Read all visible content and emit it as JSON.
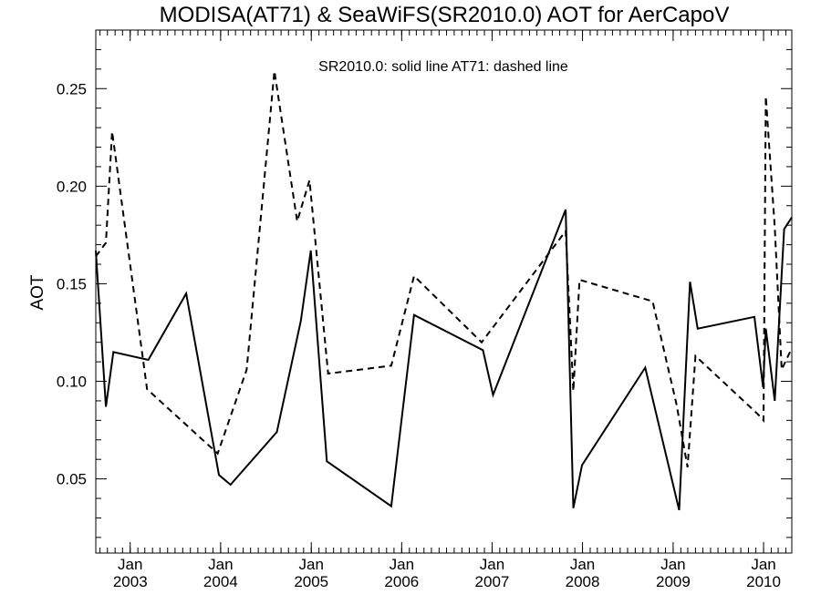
{
  "chart_data": {
    "type": "line",
    "title": "MODISA(AT71) & SeaWiFS(SR2010.0)  AOT for AerCapoV",
    "annotation": "SR2010.0: solid line   AT71: dashed line",
    "ylabel": "AOT",
    "xlabel": "",
    "xlim": [
      "2002-08-15",
      "2010-04-25"
    ],
    "ylim": [
      0.012,
      0.28
    ],
    "yticks": [
      "0.05",
      "0.10",
      "0.15",
      "0.20",
      "0.25"
    ],
    "xticks": [
      {
        "month": "Jan",
        "year": "2003",
        "date": "2003-01-01"
      },
      {
        "month": "Jan",
        "year": "2004",
        "date": "2004-01-01"
      },
      {
        "month": "Jan",
        "year": "2005",
        "date": "2005-01-01"
      },
      {
        "month": "Jan",
        "year": "2006",
        "date": "2006-01-01"
      },
      {
        "month": "Jan",
        "year": "2007",
        "date": "2007-01-01"
      },
      {
        "month": "Jan",
        "year": "2008",
        "date": "2008-01-01"
      },
      {
        "month": "Jan",
        "year": "2009",
        "date": "2009-01-01"
      },
      {
        "month": "Jan",
        "year": "2010",
        "date": "2010-01-01"
      }
    ],
    "grid": false,
    "series": [
      {
        "name": "SR2010.0",
        "style": "solid",
        "color": "#000000",
        "points": [
          [
            "2002-08-15",
            0.167
          ],
          [
            "2002-09-25",
            0.087
          ],
          [
            "2002-10-25",
            0.115
          ],
          [
            "2003-03-15",
            0.111
          ],
          [
            "2003-08-15",
            0.145
          ],
          [
            "2003-12-25",
            0.052
          ],
          [
            "2004-02-10",
            0.047
          ],
          [
            "2004-08-15",
            0.074
          ],
          [
            "2004-11-20",
            0.131
          ],
          [
            "2004-12-30",
            0.167
          ],
          [
            "2005-03-05",
            0.059
          ],
          [
            "2005-11-20",
            0.036
          ],
          [
            "2006-02-20",
            0.134
          ],
          [
            "2006-11-25",
            0.116
          ],
          [
            "2007-01-05",
            0.093
          ],
          [
            "2007-10-25",
            0.188
          ],
          [
            "2007-11-25",
            0.035
          ],
          [
            "2007-12-30",
            0.057
          ],
          [
            "2008-09-10",
            0.107
          ],
          [
            "2009-01-25",
            0.034
          ],
          [
            "2009-03-10",
            0.151
          ],
          [
            "2009-04-10",
            0.127
          ],
          [
            "2009-11-25",
            0.133
          ],
          [
            "2009-12-30",
            0.097
          ],
          [
            "2010-01-10",
            0.127
          ],
          [
            "2010-02-15",
            0.09
          ],
          [
            "2010-03-25",
            0.178
          ],
          [
            "2010-04-25",
            0.184
          ]
        ]
      },
      {
        "name": "AT71",
        "style": "dashed",
        "color": "#000000",
        "points": [
          [
            "2002-08-15",
            0.164
          ],
          [
            "2002-09-25",
            0.171
          ],
          [
            "2002-10-20",
            0.228
          ],
          [
            "2003-03-10",
            0.096
          ],
          [
            "2003-12-20",
            0.063
          ],
          [
            "2004-04-15",
            0.106
          ],
          [
            "2004-08-05",
            0.259
          ],
          [
            "2004-11-05",
            0.182
          ],
          [
            "2004-12-25",
            0.203
          ],
          [
            "2005-03-10",
            0.104
          ],
          [
            "2005-11-20",
            0.108
          ],
          [
            "2006-02-20",
            0.154
          ],
          [
            "2006-11-20",
            0.12
          ],
          [
            "2007-10-25",
            0.177
          ],
          [
            "2007-11-25",
            0.095
          ],
          [
            "2007-12-20",
            0.152
          ],
          [
            "2008-10-10",
            0.141
          ],
          [
            "2009-01-15",
            0.088
          ],
          [
            "2009-02-28",
            0.056
          ],
          [
            "2009-04-01",
            0.113
          ],
          [
            "2009-12-10",
            0.083
          ],
          [
            "2010-01-01",
            0.08
          ],
          [
            "2010-01-10",
            0.246
          ],
          [
            "2010-02-15",
            0.179
          ],
          [
            "2010-03-15",
            0.106
          ],
          [
            "2010-04-25",
            0.117
          ]
        ]
      }
    ]
  }
}
